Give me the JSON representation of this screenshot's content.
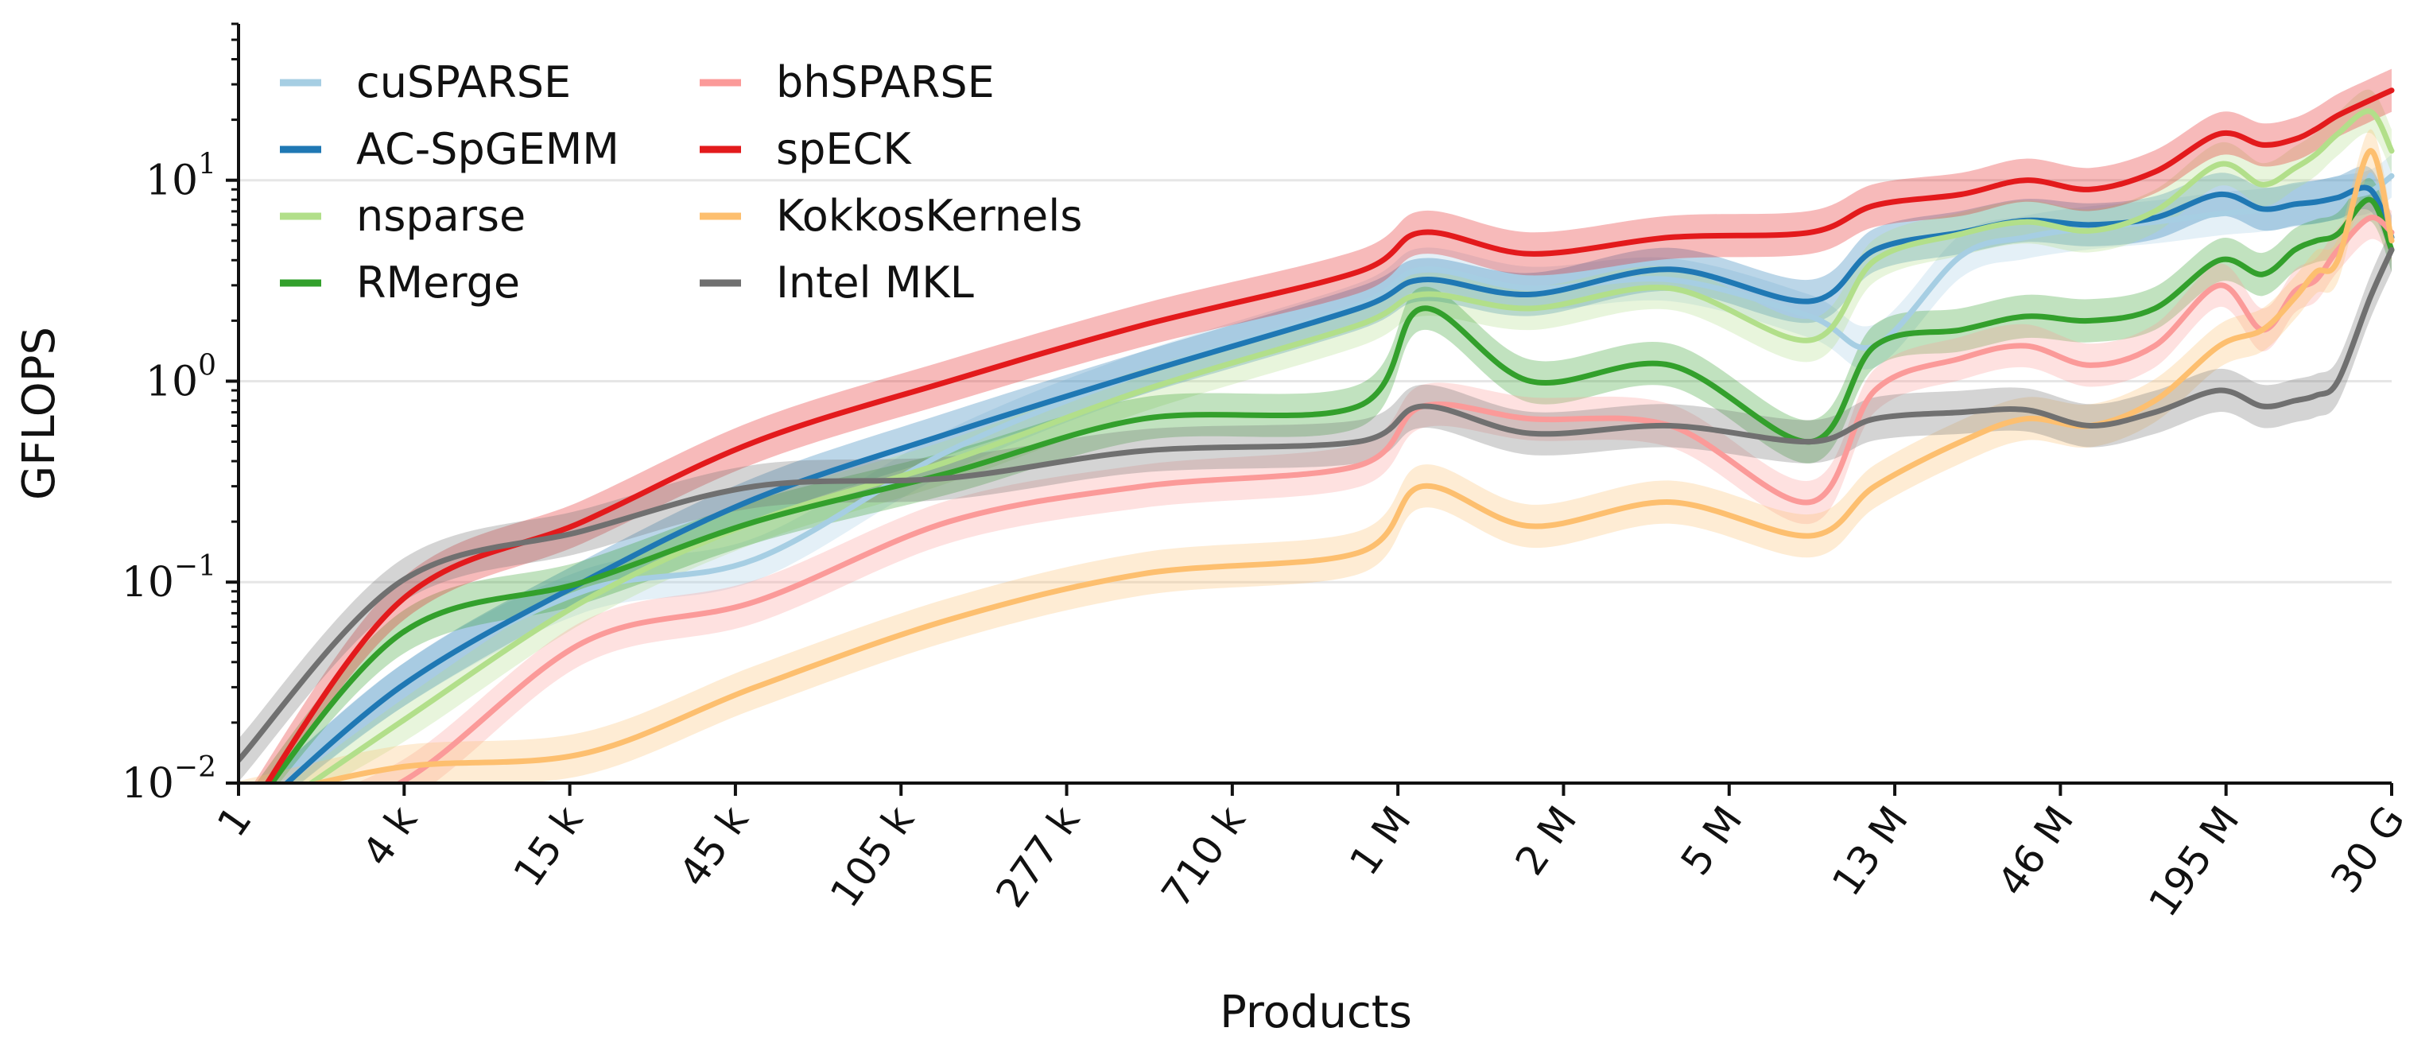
{
  "chart_data": {
    "type": "line",
    "title": "",
    "xlabel": "Products",
    "ylabel": "GFLOPS",
    "yscale": "log",
    "ylim": [
      0.01,
      60
    ],
    "yticks": [
      {
        "value": 0.01,
        "base": "10",
        "exp": "−2"
      },
      {
        "value": 0.1,
        "base": "10",
        "exp": "−1"
      },
      {
        "value": 1,
        "base": "10",
        "exp": "0"
      },
      {
        "value": 10,
        "base": "10",
        "exp": "1"
      }
    ],
    "x_categories": [
      "1",
      "4 k",
      "15 k",
      "45 k",
      "105 k",
      "277 k",
      "710 k",
      "1 M",
      "2 M",
      "5 M",
      "13 M",
      "46 M",
      "195 M",
      "30 G"
    ],
    "grid": "horizontal major",
    "legend": {
      "position": "top-left",
      "columns": 2
    },
    "series": [
      {
        "name": "cuSPARSE",
        "color": "#a6cee3",
        "values": [
          0.006,
          0.03,
          0.09,
          0.13,
          0.45,
          1.1,
          2.4,
          3.6,
          2.9,
          3.2,
          2.1,
          1.5,
          4.2,
          5.2,
          5.8,
          6.2,
          6.8,
          7.1,
          7.5,
          7.8,
          8.2,
          8.8,
          10.5
        ]
      },
      {
        "name": "AC-SpGEMM",
        "color": "#1f78b4",
        "values": [
          0.006,
          0.03,
          0.1,
          0.26,
          0.55,
          1.1,
          2.3,
          3.2,
          2.7,
          3.6,
          2.5,
          4.5,
          5.5,
          6.3,
          6.0,
          6.5,
          8.5,
          7.2,
          7.6,
          7.8,
          8.2,
          9.0,
          5.2
        ]
      },
      {
        "name": "nsparse",
        "color": "#b2df8a",
        "values": [
          0.005,
          0.02,
          0.08,
          0.2,
          0.4,
          0.9,
          1.9,
          2.7,
          2.3,
          2.9,
          1.6,
          4.0,
          5.4,
          6.2,
          5.6,
          7.0,
          12.0,
          9.5,
          11.5,
          13.5,
          17.0,
          22.0,
          14.0
        ]
      },
      {
        "name": "RMerge",
        "color": "#33a02c",
        "values": [
          0.006,
          0.055,
          0.1,
          0.2,
          0.35,
          0.65,
          0.75,
          2.3,
          1.0,
          1.2,
          0.5,
          1.5,
          1.8,
          2.1,
          2.0,
          2.3,
          4.0,
          3.4,
          4.5,
          5.0,
          5.4,
          8.0,
          4.5
        ]
      },
      {
        "name": "bhSPARSE",
        "color": "#fb9a99",
        "values": [
          0.005,
          0.01,
          0.05,
          0.08,
          0.2,
          0.3,
          0.38,
          0.75,
          0.65,
          0.6,
          0.25,
          0.9,
          1.3,
          1.5,
          1.2,
          1.5,
          3.0,
          1.8,
          2.8,
          3.2,
          4.5,
          6.5,
          5.5
        ]
      },
      {
        "name": "spECK",
        "color": "#e31a1c",
        "values": [
          0.006,
          0.08,
          0.2,
          0.5,
          1.0,
          1.9,
          3.5,
          5.5,
          4.3,
          5.2,
          5.5,
          7.5,
          8.5,
          10.0,
          9.0,
          11.0,
          17.0,
          15.0,
          16.0,
          18.0,
          21.0,
          25.0,
          28.0
        ]
      },
      {
        "name": "KokkosKernels",
        "color": "#fdbf6f",
        "values": [
          0.008,
          0.012,
          0.014,
          0.03,
          0.065,
          0.11,
          0.14,
          0.3,
          0.19,
          0.25,
          0.17,
          0.3,
          0.5,
          0.65,
          0.6,
          0.8,
          1.5,
          1.8,
          2.6,
          3.5,
          4.0,
          14.0,
          5.0
        ]
      },
      {
        "name": "Intel MKL",
        "color": "#707070",
        "values": [
          0.013,
          0.1,
          0.18,
          0.3,
          0.33,
          0.45,
          0.5,
          0.75,
          0.55,
          0.6,
          0.5,
          0.65,
          0.7,
          0.72,
          0.6,
          0.7,
          0.9,
          0.75,
          0.8,
          0.85,
          1.0,
          2.6,
          4.5
        ]
      }
    ],
    "x_fraction": [
      0.0,
      0.075,
      0.16,
      0.24,
      0.33,
      0.42,
      0.52,
      0.55,
      0.6,
      0.665,
      0.73,
      0.76,
      0.8,
      0.83,
      0.86,
      0.89,
      0.92,
      0.94,
      0.955,
      0.965,
      0.975,
      0.99,
      1.0
    ]
  }
}
